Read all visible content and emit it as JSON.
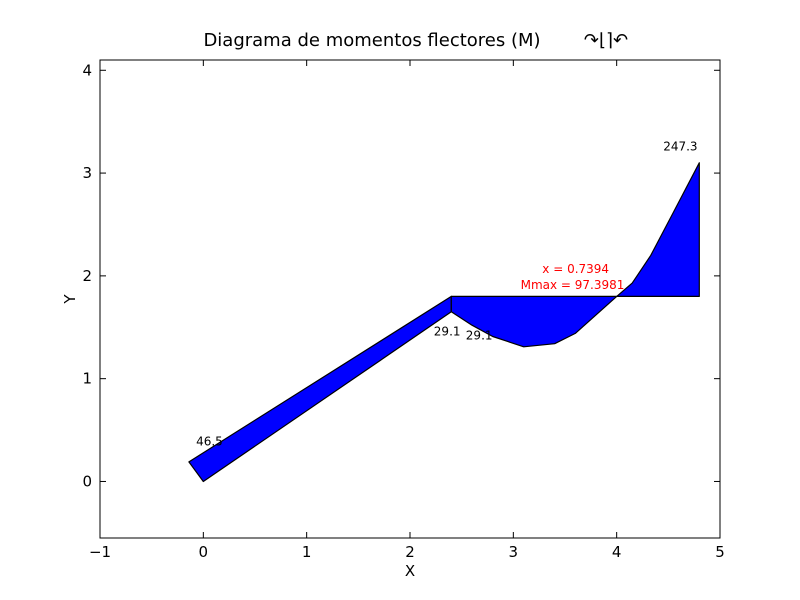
{
  "chart_data": {
    "type": "area",
    "title": "Diagrama de momentos flectores (M)",
    "title_symbol": "↷⌊⌉↶",
    "xlabel": "X",
    "ylabel": "Y",
    "xlim": [
      -1,
      5
    ],
    "ylim": [
      -0.55,
      4.1
    ],
    "xticks": [
      -1,
      0,
      1,
      2,
      3,
      4,
      5
    ],
    "xtick_labels": [
      "−1",
      "0",
      "1",
      "2",
      "3",
      "4",
      "5"
    ],
    "yticks": [
      0,
      1,
      2,
      3,
      4
    ],
    "ytick_labels": [
      "0",
      "1",
      "2",
      "3",
      "4"
    ],
    "grid": false,
    "fill_color": "#0000ff",
    "edge_color": "#000000",
    "annotation_color": "#ff0000",
    "polygons": [
      {
        "name": "",
        "points": [
          [
            0.0,
            0.0
          ],
          [
            -0.14,
            0.19
          ],
          [
            2.4,
            1.8
          ],
          [
            2.4,
            1.65
          ],
          [
            0.0,
            0.0
          ]
        ]
      },
      {
        "name": "",
        "points": [
          [
            2.4,
            1.8
          ],
          [
            2.4,
            1.65
          ],
          [
            2.6,
            1.52
          ],
          [
            2.8,
            1.41
          ],
          [
            3.1,
            1.31
          ],
          [
            3.4,
            1.34
          ],
          [
            3.6,
            1.44
          ],
          [
            3.8,
            1.62
          ],
          [
            4.0,
            1.8
          ],
          [
            2.4,
            1.8
          ]
        ]
      },
      {
        "name": "",
        "points": [
          [
            4.0,
            1.8
          ],
          [
            4.15,
            1.93
          ],
          [
            4.33,
            2.2
          ],
          [
            4.55,
            2.62
          ],
          [
            4.8,
            3.1
          ],
          [
            4.8,
            1.8
          ],
          [
            4.0,
            1.8
          ]
        ]
      }
    ],
    "annotations": [
      {
        "text": "46.5",
        "x": -0.07,
        "y": 0.35,
        "color": "#000000"
      },
      {
        "text": "29.1",
        "x": 2.23,
        "y": 1.42,
        "color": "#000000"
      },
      {
        "text": "29.1",
        "x": 2.54,
        "y": 1.38,
        "color": "#000000"
      },
      {
        "text": "247.3",
        "x": 4.45,
        "y": 3.22,
        "color": "#000000"
      },
      {
        "text": "x = 0.7394",
        "x": 3.28,
        "y": 2.03,
        "color": "#ff0000"
      },
      {
        "text": "Mmax = 97.3981",
        "x": 3.07,
        "y": 1.87,
        "color": "#ff0000"
      }
    ]
  }
}
